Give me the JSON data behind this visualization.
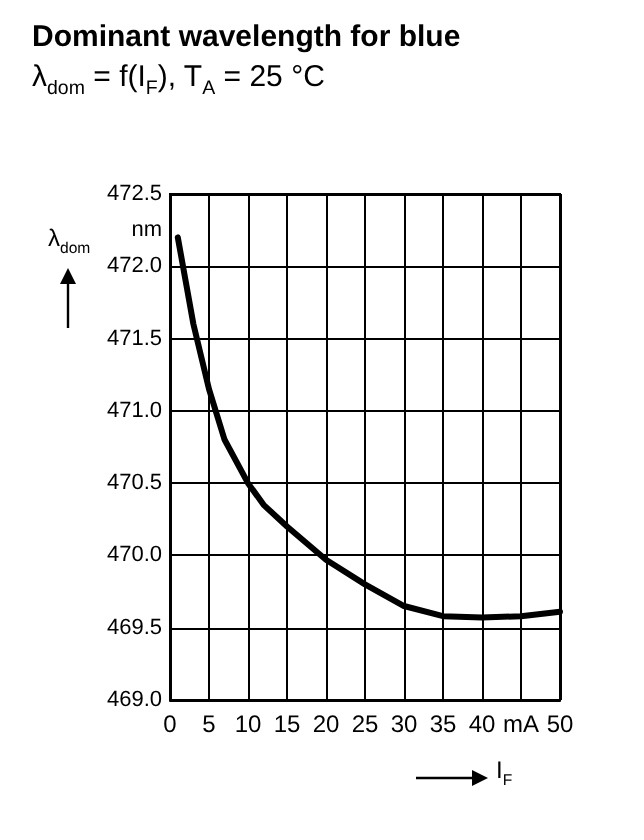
{
  "chart_data": {
    "type": "line",
    "title": "Dominant wavelength for blue",
    "subtitle": "λ$_{dom}$ = f(I$_{F}$), T$_{A}$ = 25 °C",
    "xlabel": "I$_{F}$",
    "ylabel": "λ$_{dom}$",
    "x": [
      1,
      2,
      3,
      5,
      7,
      10,
      12,
      15,
      20,
      25,
      30,
      35,
      40,
      45,
      50
    ],
    "series": [
      {
        "color": "#000000",
        "values": [
          472.2,
          471.9,
          471.6,
          471.15,
          470.8,
          470.5,
          470.35,
          470.2,
          469.97,
          469.8,
          469.65,
          469.58,
          469.57,
          469.58,
          469.61
        ]
      }
    ],
    "xlim": [
      0,
      50
    ],
    "xticks": [
      0,
      5,
      10,
      15,
      20,
      25,
      30,
      35,
      40,
      {
        "value": 45,
        "label": "mA"
      },
      50
    ],
    "ylim": [
      469,
      472.5
    ],
    "yticks": [
      {
        "value": 469,
        "label": "469.0"
      },
      469.5,
      {
        "value": 470,
        "label": "470.0"
      },
      470.5,
      {
        "value": 471,
        "label": "471.0"
      },
      471.5,
      {
        "value": 472,
        "label": "472.0"
      },
      {
        "value": 472.25,
        "label": "nm"
      },
      472.5
    ],
    "grid": true,
    "marker": "none",
    "line_style": "solid"
  }
}
